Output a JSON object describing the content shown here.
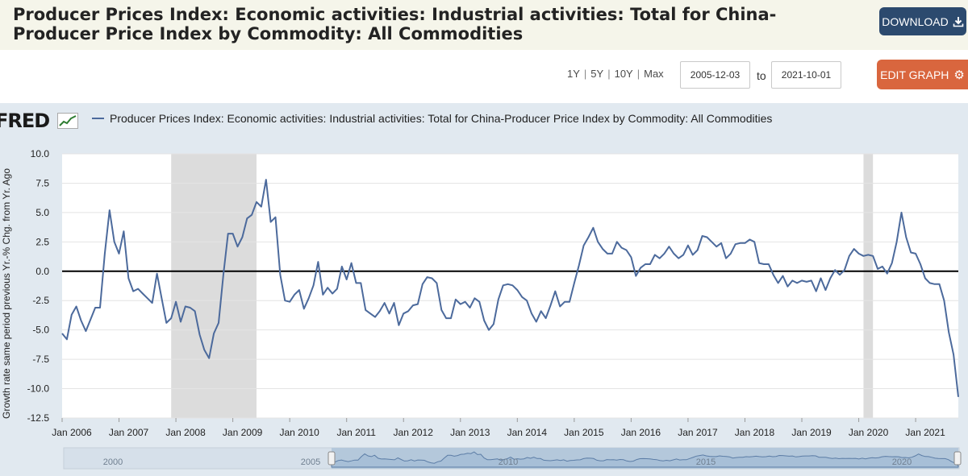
{
  "header": {
    "title": "Producer Prices Index: Economic activities: Industrial activities: Total for China-Producer Price Index by Commodity: All Commodities",
    "download_label": "DOWNLOAD"
  },
  "controls": {
    "ranges": [
      "1Y",
      "5Y",
      "10Y",
      "Max"
    ],
    "start_date": "2005-12-03",
    "to_label": "to",
    "end_date": "2021-10-01",
    "edit_label": "EDIT GRAPH"
  },
  "logo": "FRED",
  "colors": {
    "series": "#4c6a9c",
    "recession": "#dcdcdc",
    "plot_bg": "#ffffff",
    "panel_bg": "#e1e9f0",
    "download": "#2c4a6e",
    "edit": "#d9663e"
  },
  "icons": {
    "download": "download-icon",
    "edit": "gear-icon",
    "logo": "chart-sparkline-icon"
  },
  "chart_data": {
    "type": "line",
    "title": "",
    "ylabel": "Growth rate same period previous Yr.-% Chg. from Yr. Ago",
    "xlabel": "",
    "ylim": [
      -12.5,
      10
    ],
    "xlim": [
      "2006-01",
      "2021-10"
    ],
    "yticks": [
      "10.0",
      "7.5",
      "5.0",
      "2.5",
      "0.0",
      "-2.5",
      "-5.0",
      "-7.5",
      "-10.0",
      "-12.5"
    ],
    "xticks": [
      "Jan 2006",
      "Jan 2007",
      "Jan 2008",
      "Jan 2009",
      "Jan 2010",
      "Jan 2011",
      "Jan 2012",
      "Jan 2013",
      "Jan 2014",
      "Jan 2015",
      "Jan 2016",
      "Jan 2017",
      "Jan 2018",
      "Jan 2019",
      "Jan 2020",
      "Jan 2021"
    ],
    "reference_line": 0,
    "recessions": [
      [
        "2007-12",
        "2009-06"
      ],
      [
        "2020-02",
        "2020-04"
      ]
    ],
    "navigator_labels": [
      "2000",
      "2005",
      "2010",
      "2015",
      "2020"
    ],
    "grid": true,
    "legend_position": "top-left",
    "series": [
      {
        "name": "Producer Prices Index: Economic activities: Industrial activities: Total for China-Producer Price Index by Commodity: All Commodities",
        "points": [
          [
            "2006-01",
            -5.3
          ],
          [
            "2006-02",
            -5.8
          ],
          [
            "2006-03",
            -3.7
          ],
          [
            "2006-04",
            -3.0
          ],
          [
            "2006-05",
            -4.2
          ],
          [
            "2006-06",
            -5.1
          ],
          [
            "2006-07",
            -4.1
          ],
          [
            "2006-08",
            -3.1
          ],
          [
            "2006-09",
            -3.1
          ],
          [
            "2006-10",
            1.5
          ],
          [
            "2006-11",
            5.2
          ],
          [
            "2006-12",
            2.5
          ],
          [
            "2007-01",
            1.5
          ],
          [
            "2007-02",
            3.4
          ],
          [
            "2007-03",
            -0.6
          ],
          [
            "2007-04",
            -1.7
          ],
          [
            "2007-05",
            -1.5
          ],
          [
            "2007-06",
            -1.9
          ],
          [
            "2007-07",
            -2.3
          ],
          [
            "2007-08",
            -2.7
          ],
          [
            "2007-09",
            -0.2
          ],
          [
            "2007-10",
            -2.3
          ],
          [
            "2007-11",
            -4.4
          ],
          [
            "2007-12",
            -4.0
          ],
          [
            "2008-01",
            -2.6
          ],
          [
            "2008-02",
            -4.3
          ],
          [
            "2008-03",
            -3.0
          ],
          [
            "2008-04",
            -3.1
          ],
          [
            "2008-05",
            -3.4
          ],
          [
            "2008-06",
            -5.4
          ],
          [
            "2008-07",
            -6.7
          ],
          [
            "2008-08",
            -7.4
          ],
          [
            "2008-09",
            -5.3
          ],
          [
            "2008-10",
            -4.4
          ],
          [
            "2008-11",
            -0.3
          ],
          [
            "2008-12",
            3.2
          ],
          [
            "2009-01",
            3.2
          ],
          [
            "2009-02",
            2.1
          ],
          [
            "2009-03",
            2.9
          ],
          [
            "2009-04",
            4.5
          ],
          [
            "2009-05",
            4.8
          ],
          [
            "2009-06",
            5.9
          ],
          [
            "2009-07",
            5.5
          ],
          [
            "2009-08",
            7.8
          ],
          [
            "2009-09",
            4.2
          ],
          [
            "2009-10",
            4.6
          ],
          [
            "2009-11",
            -0.3
          ],
          [
            "2009-12",
            -2.5
          ],
          [
            "2010-01",
            -2.6
          ],
          [
            "2010-02",
            -2.0
          ],
          [
            "2010-03",
            -1.6
          ],
          [
            "2010-04",
            -3.2
          ],
          [
            "2010-05",
            -2.3
          ],
          [
            "2010-06",
            -1.2
          ],
          [
            "2010-07",
            0.8
          ],
          [
            "2010-08",
            -2.0
          ],
          [
            "2010-09",
            -1.4
          ],
          [
            "2010-10",
            -1.9
          ],
          [
            "2010-11",
            -1.5
          ],
          [
            "2010-12",
            0.4
          ],
          [
            "2011-01",
            -0.7
          ],
          [
            "2011-02",
            0.7
          ],
          [
            "2011-03",
            -1.0
          ],
          [
            "2011-04",
            -1.0
          ],
          [
            "2011-05",
            -3.3
          ],
          [
            "2011-06",
            -3.6
          ],
          [
            "2011-07",
            -3.9
          ],
          [
            "2011-08",
            -3.4
          ],
          [
            "2011-09",
            -2.7
          ],
          [
            "2011-10",
            -3.6
          ],
          [
            "2011-11",
            -2.7
          ],
          [
            "2011-12",
            -4.6
          ],
          [
            "2012-01",
            -3.6
          ],
          [
            "2012-02",
            -3.4
          ],
          [
            "2012-03",
            -2.9
          ],
          [
            "2012-04",
            -2.8
          ],
          [
            "2012-05",
            -1.1
          ],
          [
            "2012-06",
            -0.5
          ],
          [
            "2012-07",
            -0.6
          ],
          [
            "2012-08",
            -1.0
          ],
          [
            "2012-09",
            -3.3
          ],
          [
            "2012-10",
            -4.0
          ],
          [
            "2012-11",
            -4.0
          ],
          [
            "2012-12",
            -2.4
          ],
          [
            "2013-01",
            -2.8
          ],
          [
            "2013-02",
            -2.6
          ],
          [
            "2013-03",
            -3.1
          ],
          [
            "2013-04",
            -2.3
          ],
          [
            "2013-05",
            -2.6
          ],
          [
            "2013-06",
            -4.2
          ],
          [
            "2013-07",
            -5.0
          ],
          [
            "2013-08",
            -4.5
          ],
          [
            "2013-09",
            -2.4
          ],
          [
            "2013-10",
            -1.2
          ],
          [
            "2013-11",
            -1.1
          ],
          [
            "2013-12",
            -1.2
          ],
          [
            "2014-01",
            -1.6
          ],
          [
            "2014-02",
            -2.2
          ],
          [
            "2014-03",
            -2.5
          ],
          [
            "2014-04",
            -3.6
          ],
          [
            "2014-05",
            -4.3
          ],
          [
            "2014-06",
            -3.4
          ],
          [
            "2014-07",
            -4.0
          ],
          [
            "2014-08",
            -2.9
          ],
          [
            "2014-09",
            -1.7
          ],
          [
            "2014-10",
            -3.0
          ],
          [
            "2014-11",
            -2.6
          ],
          [
            "2014-12",
            -2.6
          ],
          [
            "2015-01",
            -1.0
          ],
          [
            "2015-02",
            0.5
          ],
          [
            "2015-03",
            2.2
          ],
          [
            "2015-04",
            2.9
          ],
          [
            "2015-05",
            3.7
          ],
          [
            "2015-06",
            2.5
          ],
          [
            "2015-07",
            1.9
          ],
          [
            "2015-08",
            1.5
          ],
          [
            "2015-09",
            1.5
          ],
          [
            "2015-10",
            2.5
          ],
          [
            "2015-11",
            2.0
          ],
          [
            "2015-12",
            1.8
          ],
          [
            "2016-01",
            1.2
          ],
          [
            "2016-02",
            -0.4
          ],
          [
            "2016-03",
            0.3
          ],
          [
            "2016-04",
            0.6
          ],
          [
            "2016-05",
            0.6
          ],
          [
            "2016-06",
            1.4
          ],
          [
            "2016-07",
            1.1
          ],
          [
            "2016-08",
            1.5
          ],
          [
            "2016-09",
            2.1
          ],
          [
            "2016-10",
            1.5
          ],
          [
            "2016-11",
            1.1
          ],
          [
            "2016-12",
            1.4
          ],
          [
            "2017-01",
            2.2
          ],
          [
            "2017-02",
            1.4
          ],
          [
            "2017-03",
            1.8
          ],
          [
            "2017-04",
            3.0
          ],
          [
            "2017-05",
            2.9
          ],
          [
            "2017-06",
            2.5
          ],
          [
            "2017-07",
            2.1
          ],
          [
            "2017-08",
            2.4
          ],
          [
            "2017-09",
            1.1
          ],
          [
            "2017-10",
            1.5
          ],
          [
            "2017-11",
            2.3
          ],
          [
            "2017-12",
            2.4
          ],
          [
            "2018-01",
            2.4
          ],
          [
            "2018-02",
            2.7
          ],
          [
            "2018-03",
            2.5
          ],
          [
            "2018-04",
            0.7
          ],
          [
            "2018-05",
            0.6
          ],
          [
            "2018-06",
            0.6
          ],
          [
            "2018-07",
            -0.3
          ],
          [
            "2018-08",
            -1.0
          ],
          [
            "2018-09",
            -0.4
          ],
          [
            "2018-10",
            -1.3
          ],
          [
            "2018-11",
            -0.8
          ],
          [
            "2018-12",
            -1.0
          ],
          [
            "2019-01",
            -0.8
          ],
          [
            "2019-02",
            -0.9
          ],
          [
            "2019-03",
            -0.8
          ],
          [
            "2019-04",
            -1.7
          ],
          [
            "2019-05",
            -0.6
          ],
          [
            "2019-06",
            -1.6
          ],
          [
            "2019-07",
            -0.6
          ],
          [
            "2019-08",
            0.1
          ],
          [
            "2019-09",
            -0.3
          ],
          [
            "2019-10",
            0.1
          ],
          [
            "2019-11",
            1.3
          ],
          [
            "2019-12",
            1.9
          ],
          [
            "2020-01",
            1.5
          ],
          [
            "2020-02",
            1.3
          ],
          [
            "2020-03",
            1.4
          ],
          [
            "2020-04",
            1.3
          ],
          [
            "2020-05",
            0.2
          ],
          [
            "2020-06",
            0.4
          ],
          [
            "2020-07",
            -0.2
          ],
          [
            "2020-08",
            0.7
          ],
          [
            "2020-09",
            2.5
          ],
          [
            "2020-10",
            5.0
          ],
          [
            "2020-11",
            2.9
          ],
          [
            "2020-12",
            1.6
          ],
          [
            "2021-01",
            1.5
          ],
          [
            "2021-02",
            0.6
          ],
          [
            "2021-03",
            -0.6
          ],
          [
            "2021-04",
            -1.0
          ],
          [
            "2021-05",
            -1.1
          ],
          [
            "2021-06",
            -1.1
          ],
          [
            "2021-07",
            -2.5
          ],
          [
            "2021-08",
            -5.2
          ],
          [
            "2021-09",
            -7.1
          ],
          [
            "2021-10",
            -10.7
          ]
        ]
      }
    ]
  }
}
